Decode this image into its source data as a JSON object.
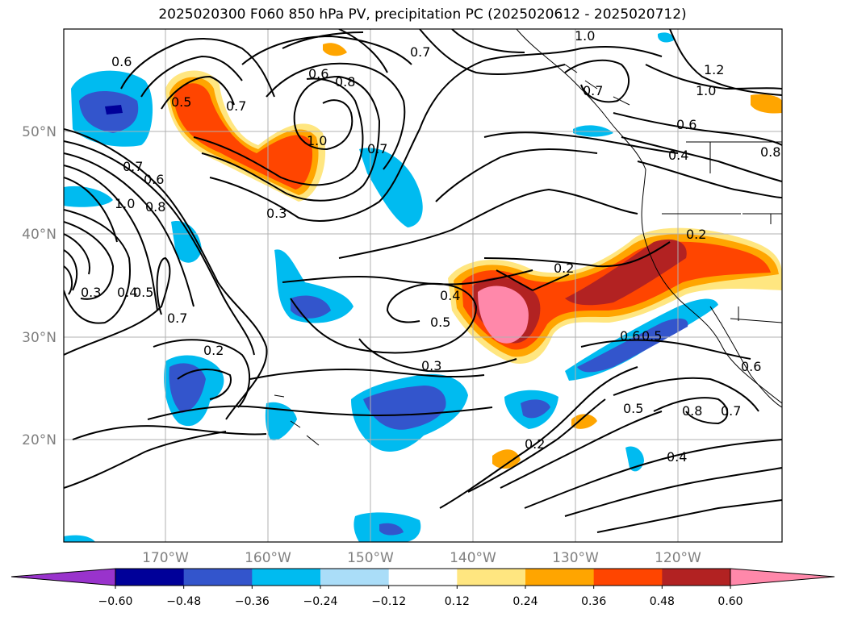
{
  "title": "2025020300 F060 850 hPa PV, precipitation PC (2025020612 - 2025020712)",
  "latitude_labels": [
    "50°N",
    "40°N",
    "30°N",
    "20°N"
  ],
  "longitude_labels": [
    "170°W",
    "160°W",
    "150°W",
    "140°W",
    "130°W",
    "120°W"
  ],
  "colorbar": {
    "tick_labels": [
      "−0.60",
      "−0.48",
      "−0.36",
      "−0.24",
      "−0.12",
      "0.12",
      "0.24",
      "0.36",
      "0.48",
      "0.60"
    ],
    "colors": [
      "#9933cc",
      "#000099",
      "#3355cc",
      "#00bbf0",
      "#aaddf8",
      "#ffffff",
      "#ffe680",
      "#ffa500",
      "#ff4500",
      "#b22222",
      "#ff88aa"
    ]
  },
  "contour_labels": [
    {
      "text": "0.6"
    },
    {
      "text": "0.5"
    },
    {
      "text": "0.7"
    },
    {
      "text": "0.6"
    },
    {
      "text": "0.8"
    },
    {
      "text": "0.7"
    },
    {
      "text": "1.0"
    },
    {
      "text": "1.0"
    },
    {
      "text": "0.7"
    },
    {
      "text": "0.7"
    },
    {
      "text": "1.2"
    },
    {
      "text": "1.0"
    },
    {
      "text": "0.6"
    },
    {
      "text": "0.4"
    },
    {
      "text": "0.8"
    },
    {
      "text": "0.7"
    },
    {
      "text": "0.6"
    },
    {
      "text": "1.0"
    },
    {
      "text": "0.8"
    },
    {
      "text": "0.3"
    },
    {
      "text": "0.2"
    },
    {
      "text": "0.2"
    },
    {
      "text": "0.3"
    },
    {
      "text": "0.4"
    },
    {
      "text": "0.5"
    },
    {
      "text": "0.7"
    },
    {
      "text": "0.4"
    },
    {
      "text": "0.5"
    },
    {
      "text": "0.2"
    },
    {
      "text": "0.6"
    },
    {
      "text": "0.5"
    },
    {
      "text": "0.6"
    },
    {
      "text": "0.3"
    },
    {
      "text": "0.5"
    },
    {
      "text": "0.8"
    },
    {
      "text": "0.7"
    },
    {
      "text": "0.2"
    },
    {
      "text": "0.4"
    }
  ]
}
